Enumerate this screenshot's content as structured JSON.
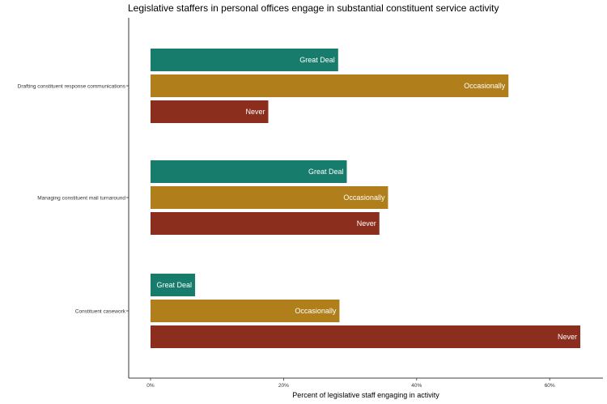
{
  "chart_data": {
    "type": "bar",
    "orientation": "horizontal",
    "title": "Legislative staffers in personal offices engage in substantial constituent service activity",
    "xlabel": "Percent of legislative staff engaging in activity",
    "ylabel": "",
    "xlim": [
      0,
      0.68
    ],
    "x_ticks": [
      {
        "value": 0,
        "label": "0%"
      },
      {
        "value": 0.2,
        "label": "20%"
      },
      {
        "value": 0.4,
        "label": "40%"
      },
      {
        "value": 0.6,
        "label": "60%"
      }
    ],
    "grid": false,
    "legend": "none",
    "categories": [
      "Drafting constituent response communications",
      "Managing constituent mail turnaround",
      "Constituent casework"
    ],
    "series": [
      {
        "name": "Great Deal",
        "color": "#177c6b",
        "values": [
          0.282,
          0.295,
          0.067
        ]
      },
      {
        "name": "Occasionally",
        "color": "#b07f1b",
        "values": [
          0.538,
          0.357,
          0.284
        ]
      },
      {
        "name": "Never",
        "color": "#8b2e1e",
        "values": [
          0.177,
          0.344,
          0.646
        ]
      }
    ]
  }
}
